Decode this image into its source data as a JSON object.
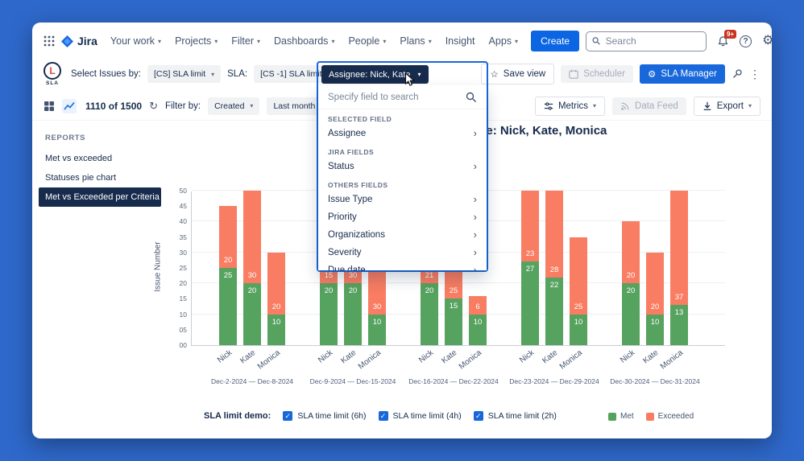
{
  "navbar": {
    "logo": "Jira",
    "menu": [
      "Your work",
      "Projects",
      "Filter",
      "Dashboards",
      "People",
      "Plans",
      "Insight",
      "Apps"
    ],
    "create_label": "Create",
    "search_placeholder": "Search",
    "notifications_badge": "9+"
  },
  "app_header": {
    "logo_text": "SLA",
    "logo_letter": "L",
    "select_issues_label": "Select Issues by:",
    "select_issues_value": "[CS] SLA limit",
    "sla_label": "SLA:",
    "sla_value": "[CS -1] SLA limit demo",
    "assignee_filter": "Assignee: Nick, Kate",
    "save_view_label": "Save view",
    "scheduler_label": "Scheduler",
    "sla_manager_label": "SLA Manager"
  },
  "field_popup": {
    "search_placeholder": "Specify field to search",
    "sections": [
      {
        "label": "SELECTED FIELD",
        "items": [
          "Assignee"
        ]
      },
      {
        "label": "JIRA FIELDS",
        "items": [
          "Status"
        ]
      },
      {
        "label": "OTHERS FIELDS",
        "items": [
          "Issue Type",
          "Priority",
          "Organizations",
          "Severity",
          "Due date"
        ]
      }
    ]
  },
  "toolbar": {
    "count": "1110 of 1500",
    "filter_by_label": "Filter by:",
    "field_value": "Created",
    "period_value": "Last month",
    "date_value": "Dec/01/2...",
    "metrics_label": "Metrics",
    "data_feed_label": "Data Feed",
    "export_label": "Export"
  },
  "sidebar": {
    "heading": "REPORTS",
    "items": [
      "Met vs exceeded",
      "Statuses pie chart",
      "Met vs Exceeded per Criteria"
    ]
  },
  "chart_data": {
    "type": "bar",
    "stacked": true,
    "title": "Assignee: Nick, Kate, Monica",
    "ylabel": "Issue Number",
    "ylim": [
      0,
      50
    ],
    "yticks": [
      0,
      5,
      10,
      15,
      20,
      25,
      30,
      35,
      40,
      45,
      50
    ],
    "legend": [
      {
        "name": "Met",
        "color": "#56A25F"
      },
      {
        "name": "Exceeded",
        "color": "#F87D62"
      }
    ],
    "groups": [
      {
        "date_range": "Dec-2-2024 — Dec-8-2024",
        "bars": [
          {
            "name": "Nick",
            "met": 25,
            "exceeded": 20
          },
          {
            "name": "Kate",
            "met": 20,
            "exceeded": 30
          },
          {
            "name": "Monica",
            "met": 10,
            "exceeded": 20
          }
        ]
      },
      {
        "date_range": "Dec-9-2024 — Dec-15-2024",
        "bars": [
          {
            "name": "Nick",
            "met": 20,
            "exceeded": 15
          },
          {
            "name": "Kate",
            "met": 20,
            "exceeded": 30
          },
          {
            "name": "Monica",
            "met": 10,
            "exceeded": 30
          }
        ]
      },
      {
        "date_range": "Dec-16-2024 — Dec-22-2024",
        "bars": [
          {
            "name": "Nick",
            "met": 20,
            "exceeded": 21
          },
          {
            "name": "Kate",
            "met": 15,
            "exceeded": 25
          },
          {
            "name": "Monica",
            "met": 10,
            "exceeded": 6
          }
        ]
      },
      {
        "date_range": "Dec-23-2024 — Dec-29-2024",
        "bars": [
          {
            "name": "Nick",
            "met": 27,
            "exceeded": 23
          },
          {
            "name": "Kate",
            "met": 22,
            "exceeded": 28
          },
          {
            "name": "Monica",
            "met": 10,
            "exceeded": 25
          }
        ]
      },
      {
        "date_range": "Dec-30-2024 — Dec-31-2024",
        "bars": [
          {
            "name": "Nick",
            "met": 20,
            "exceeded": 20
          },
          {
            "name": "Kate",
            "met": 10,
            "exceeded": 20
          },
          {
            "name": "Monica",
            "met": 13,
            "exceeded": 37
          }
        ]
      }
    ]
  },
  "footer": {
    "demo_label": "SLA limit demo:",
    "checkboxes": [
      "SLA time limit (6h)",
      "SLA time limit (4h)",
      "SLA time limit (2h)"
    ]
  }
}
